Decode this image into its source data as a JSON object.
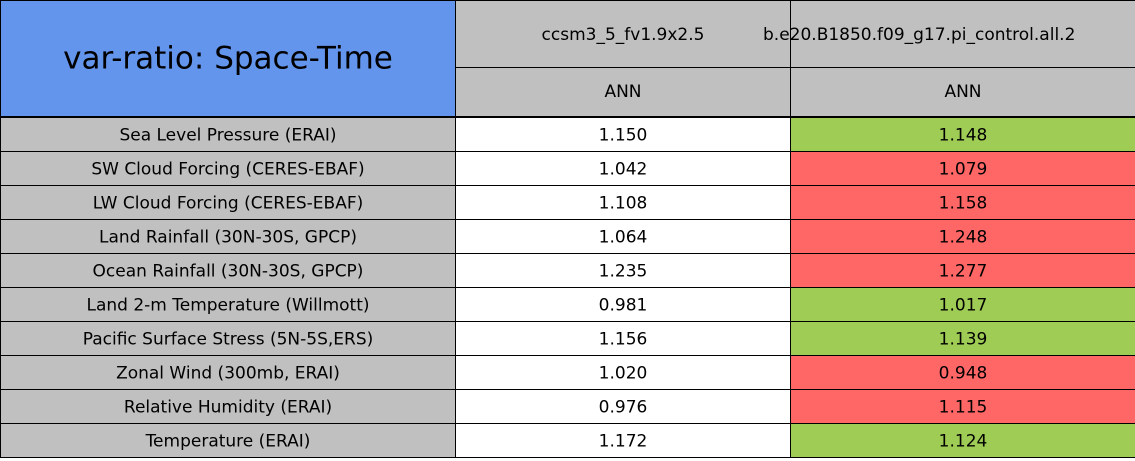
{
  "header": {
    "title": "var-ratio: Space-Time",
    "columns": [
      "ccsm3_5_fv1.9x2.5",
      "b.e20.B1850.f09_g17.pi_control.all.2"
    ],
    "periods": [
      "ANN",
      "ANN"
    ]
  },
  "table": {
    "rows": [
      [
        "Sea Level Pressure (ERAI)",
        "1.150",
        "1.148"
      ],
      [
        "SW Cloud Forcing (CERES-EBAF)",
        "1.042",
        "1.079"
      ],
      [
        "LW Cloud Forcing (CERES-EBAF)",
        "1.108",
        "1.158"
      ],
      [
        "Land Rainfall (30N-30S, GPCP)",
        "1.064",
        "1.248"
      ],
      [
        "Ocean Rainfall (30N-30S, GPCP)",
        "1.235",
        "1.277"
      ],
      [
        "Land 2-m Temperature (Willmott)",
        "0.981",
        "1.017"
      ],
      [
        "Pacific Surface Stress (5N-5S,ERS)",
        "1.156",
        "1.139"
      ],
      [
        "Zonal Wind (300mb, ERAI)",
        "1.020",
        "0.948"
      ],
      [
        "Relative Humidity (ERAI)",
        "0.976",
        "1.115"
      ],
      [
        "Temperature (ERAI)",
        "1.172",
        "1.124"
      ]
    ],
    "cell_colors": [
      [
        "#c0c0c0",
        "#ffffff",
        "#9fcc55"
      ],
      [
        "#c0c0c0",
        "#ffffff",
        "#ff6666"
      ],
      [
        "#c0c0c0",
        "#ffffff",
        "#ff6666"
      ],
      [
        "#c0c0c0",
        "#ffffff",
        "#ff6666"
      ],
      [
        "#c0c0c0",
        "#ffffff",
        "#ff6666"
      ],
      [
        "#c0c0c0",
        "#ffffff",
        "#9fcc55"
      ],
      [
        "#c0c0c0",
        "#ffffff",
        "#9fcc55"
      ],
      [
        "#c0c0c0",
        "#ffffff",
        "#ff6666"
      ],
      [
        "#c0c0c0",
        "#ffffff",
        "#ff6666"
      ],
      [
        "#c0c0c0",
        "#ffffff",
        "#9fcc55"
      ]
    ]
  }
}
